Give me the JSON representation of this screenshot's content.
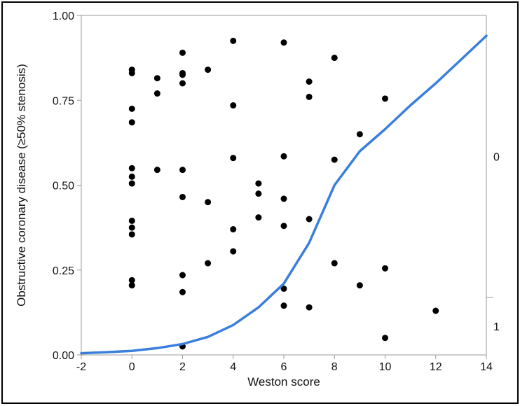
{
  "chart_data": {
    "type": "scatter",
    "xlabel": "Weston score",
    "ylabel": "Obstructive coronary disease (≥50% stenosis)",
    "xlim": [
      -2,
      14
    ],
    "ylim": [
      0,
      1
    ],
    "x_ticks": [
      "-2",
      "0",
      "2",
      "4",
      "6",
      "8",
      "10",
      "12",
      "14"
    ],
    "y_ticks": [
      "0.00",
      "0.25",
      "0.50",
      "0.75",
      "1.00"
    ],
    "right_axis": {
      "labels": [
        "0",
        "1"
      ],
      "split_at": 0.17
    },
    "grid": false,
    "legend": "none",
    "colors": {
      "points": "#000000",
      "curve": "#3a7fdc",
      "axis": "#999999"
    },
    "points": [
      {
        "x": 0,
        "y": 0.84
      },
      {
        "x": 0,
        "y": 0.83
      },
      {
        "x": 0,
        "y": 0.725
      },
      {
        "x": 0,
        "y": 0.685
      },
      {
        "x": 0,
        "y": 0.55
      },
      {
        "x": 0,
        "y": 0.525
      },
      {
        "x": 0,
        "y": 0.505
      },
      {
        "x": 0,
        "y": 0.395
      },
      {
        "x": 0,
        "y": 0.375
      },
      {
        "x": 0,
        "y": 0.355
      },
      {
        "x": 0,
        "y": 0.22
      },
      {
        "x": 0,
        "y": 0.205
      },
      {
        "x": 1,
        "y": 0.815
      },
      {
        "x": 1,
        "y": 0.77
      },
      {
        "x": 1,
        "y": 0.545
      },
      {
        "x": 2,
        "y": 0.89
      },
      {
        "x": 2,
        "y": 0.83
      },
      {
        "x": 2,
        "y": 0.825
      },
      {
        "x": 2,
        "y": 0.8
      },
      {
        "x": 2,
        "y": 0.545
      },
      {
        "x": 2,
        "y": 0.465
      },
      {
        "x": 2,
        "y": 0.235
      },
      {
        "x": 2,
        "y": 0.185
      },
      {
        "x": 2,
        "y": 0.025
      },
      {
        "x": 3,
        "y": 0.84
      },
      {
        "x": 3,
        "y": 0.45
      },
      {
        "x": 3,
        "y": 0.27
      },
      {
        "x": 4,
        "y": 0.925
      },
      {
        "x": 4,
        "y": 0.735
      },
      {
        "x": 4,
        "y": 0.58
      },
      {
        "x": 4,
        "y": 0.37
      },
      {
        "x": 4,
        "y": 0.305
      },
      {
        "x": 5,
        "y": 0.505
      },
      {
        "x": 5,
        "y": 0.475
      },
      {
        "x": 5,
        "y": 0.405
      },
      {
        "x": 6,
        "y": 0.92
      },
      {
        "x": 6,
        "y": 0.585
      },
      {
        "x": 6,
        "y": 0.46
      },
      {
        "x": 6,
        "y": 0.38
      },
      {
        "x": 6,
        "y": 0.195
      },
      {
        "x": 6,
        "y": 0.145
      },
      {
        "x": 7,
        "y": 0.805
      },
      {
        "x": 7,
        "y": 0.76
      },
      {
        "x": 7,
        "y": 0.4
      },
      {
        "x": 7,
        "y": 0.14
      },
      {
        "x": 8,
        "y": 0.875
      },
      {
        "x": 8,
        "y": 0.575
      },
      {
        "x": 8,
        "y": 0.27
      },
      {
        "x": 9,
        "y": 0.65
      },
      {
        "x": 9,
        "y": 0.205
      },
      {
        "x": 10,
        "y": 0.755
      },
      {
        "x": 10,
        "y": 0.255
      },
      {
        "x": 10,
        "y": 0.05
      },
      {
        "x": 12,
        "y": 0.13
      }
    ],
    "curve": [
      {
        "x": -2,
        "y": 0.005
      },
      {
        "x": -1,
        "y": 0.008
      },
      {
        "x": 0,
        "y": 0.012
      },
      {
        "x": 1,
        "y": 0.02
      },
      {
        "x": 2,
        "y": 0.032
      },
      {
        "x": 3,
        "y": 0.053
      },
      {
        "x": 4,
        "y": 0.088
      },
      {
        "x": 5,
        "y": 0.14
      },
      {
        "x": 6,
        "y": 0.21
      },
      {
        "x": 7,
        "y": 0.33
      },
      {
        "x": 8,
        "y": 0.5
      },
      {
        "x": 9,
        "y": 0.6
      },
      {
        "x": 10,
        "y": 0.665
      },
      {
        "x": 11,
        "y": 0.735
      },
      {
        "x": 12,
        "y": 0.8
      },
      {
        "x": 13,
        "y": 0.87
      },
      {
        "x": 14,
        "y": 0.94
      }
    ]
  }
}
